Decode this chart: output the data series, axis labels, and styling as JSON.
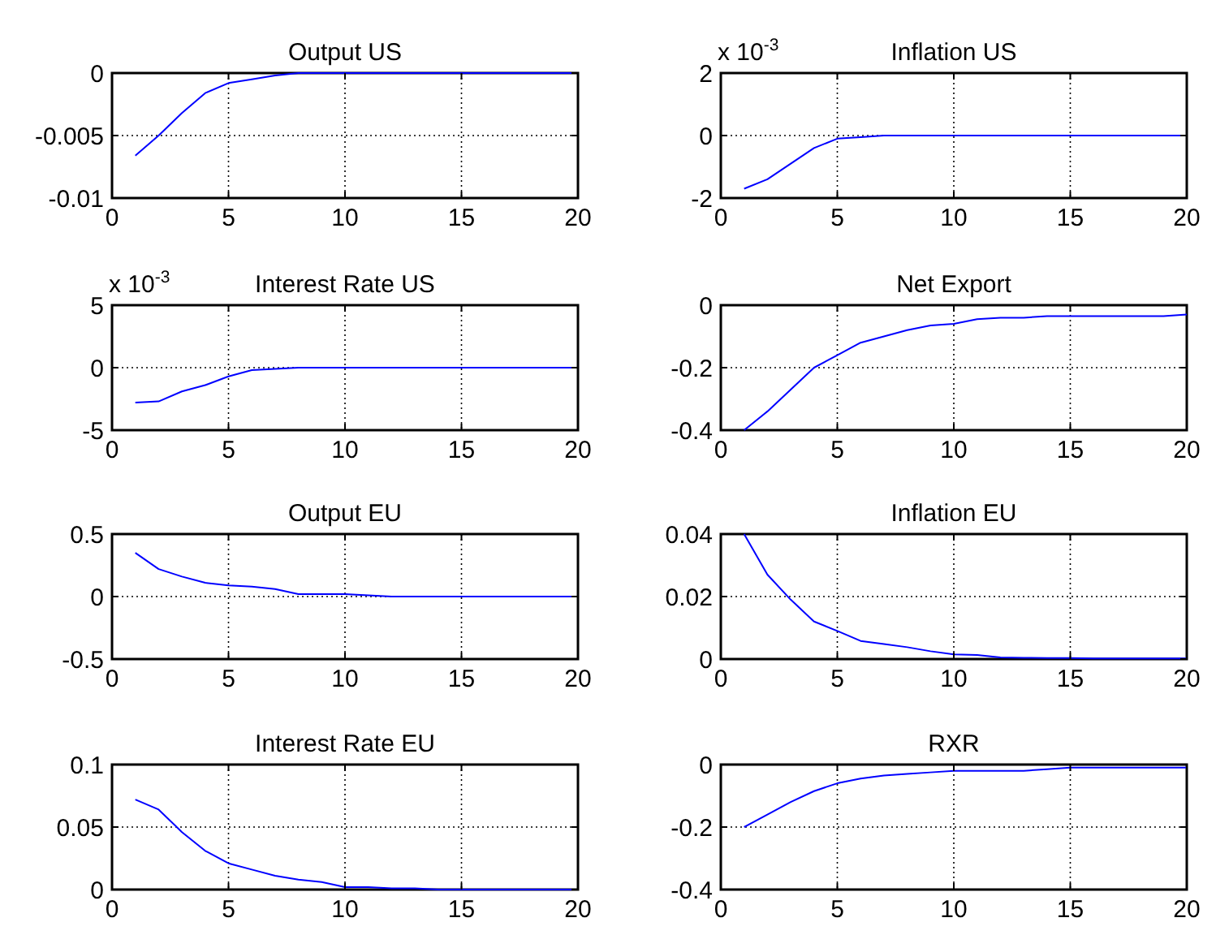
{
  "chart_data": [
    {
      "type": "line",
      "title": "Output US",
      "x": [
        1,
        2,
        3,
        4,
        5,
        6,
        7,
        8,
        9,
        10,
        11,
        12,
        13,
        14,
        15,
        16,
        17,
        18,
        19,
        20
      ],
      "series": [
        {
          "color": "#0000ff",
          "values": [
            -0.0066,
            -0.005,
            -0.0032,
            -0.0016,
            -0.0008,
            -0.0005,
            -0.0002,
            0,
            0,
            0,
            0,
            0,
            0,
            0,
            0,
            0,
            0,
            0,
            0,
            0
          ]
        }
      ],
      "xlim": [
        0,
        20
      ],
      "xticks": [
        0,
        5,
        10,
        15,
        20
      ],
      "ylim": [
        -0.01,
        0
      ],
      "yticks": [
        -0.01,
        -0.005,
        0
      ],
      "grid": true
    },
    {
      "type": "line",
      "title": "Inflation US",
      "annotations": [
        "x 10$^{-3}$"
      ],
      "x": [
        1,
        2,
        3,
        4,
        5,
        6,
        7,
        8,
        9,
        10,
        11,
        12,
        13,
        14,
        15,
        16,
        17,
        18,
        19,
        20
      ],
      "series": [
        {
          "color": "#0000ff",
          "values": [
            -1.7,
            -1.4,
            -0.9,
            -0.4,
            -0.1,
            -0.05,
            0,
            0,
            0,
            0,
            0,
            0,
            0,
            0,
            0,
            0,
            0,
            0,
            0,
            0
          ]
        }
      ],
      "xlim": [
        0,
        20
      ],
      "xticks": [
        0,
        5,
        10,
        15,
        20
      ],
      "ylim": [
        -2,
        2
      ],
      "yticks": [
        -2,
        0,
        2
      ],
      "grid": true
    },
    {
      "type": "line",
      "title": "Interest Rate US",
      "annotations": [
        "x 10$^{-3}$"
      ],
      "x": [
        1,
        2,
        3,
        4,
        5,
        6,
        7,
        8,
        9,
        10,
        11,
        12,
        13,
        14,
        15,
        16,
        17,
        18,
        19,
        20
      ],
      "series": [
        {
          "color": "#0000ff",
          "values": [
            -2.8,
            -2.7,
            -1.9,
            -1.4,
            -0.7,
            -0.2,
            -0.1,
            0,
            0,
            0,
            0,
            0,
            0,
            0,
            0,
            0,
            0,
            0,
            0,
            0
          ]
        }
      ],
      "xlim": [
        0,
        20
      ],
      "xticks": [
        0,
        5,
        10,
        15,
        20
      ],
      "ylim": [
        -5,
        5
      ],
      "yticks": [
        -5,
        0,
        5
      ],
      "grid": true
    },
    {
      "type": "line",
      "title": "Net Export",
      "x": [
        1,
        2,
        3,
        4,
        5,
        6,
        7,
        8,
        9,
        10,
        11,
        12,
        13,
        14,
        15,
        16,
        17,
        18,
        19,
        20
      ],
      "series": [
        {
          "color": "#0000ff",
          "values": [
            -0.4,
            -0.34,
            -0.27,
            -0.2,
            -0.16,
            -0.12,
            -0.1,
            -0.08,
            -0.065,
            -0.06,
            -0.045,
            -0.04,
            -0.04,
            -0.035,
            -0.035,
            -0.035,
            -0.035,
            -0.035,
            -0.035,
            -0.03
          ]
        }
      ],
      "xlim": [
        0,
        20
      ],
      "xticks": [
        0,
        5,
        10,
        15,
        20
      ],
      "ylim": [
        -0.4,
        0
      ],
      "yticks": [
        -0.4,
        -0.2,
        0
      ],
      "grid": true
    },
    {
      "type": "line",
      "title": "Output EU",
      "x": [
        1,
        2,
        3,
        4,
        5,
        6,
        7,
        8,
        9,
        10,
        11,
        12,
        13,
        14,
        15,
        16,
        17,
        18,
        19,
        20
      ],
      "series": [
        {
          "color": "#0000ff",
          "values": [
            0.35,
            0.22,
            0.16,
            0.11,
            0.09,
            0.08,
            0.06,
            0.02,
            0.02,
            0.02,
            0.01,
            0,
            0,
            0,
            0,
            0,
            0,
            0,
            0,
            0
          ]
        }
      ],
      "xlim": [
        0,
        20
      ],
      "xticks": [
        0,
        5,
        10,
        15,
        20
      ],
      "ylim": [
        -0.5,
        0.5
      ],
      "yticks": [
        -0.5,
        0,
        0.5
      ],
      "grid": true
    },
    {
      "type": "line",
      "title": "Inflation EU",
      "x": [
        1,
        2,
        3,
        4,
        5,
        6,
        7,
        8,
        9,
        10,
        11,
        12,
        13,
        14,
        15,
        16,
        17,
        18,
        19,
        20
      ],
      "series": [
        {
          "color": "#0000ff",
          "values": [
            0.04,
            0.027,
            0.019,
            0.012,
            0.009,
            0.0058,
            0.0048,
            0.0038,
            0.0025,
            0.0015,
            0.0013,
            0.0005,
            0.0004,
            0.0003,
            0.0003,
            0.0002,
            0.0002,
            0.0002,
            0.0002,
            0.0002
          ]
        }
      ],
      "xlim": [
        0,
        20
      ],
      "xticks": [
        0,
        5,
        10,
        15,
        20
      ],
      "ylim": [
        0,
        0.04
      ],
      "yticks": [
        0,
        0.02,
        0.04
      ],
      "grid": true
    },
    {
      "type": "line",
      "title": "Interest Rate EU",
      "x": [
        1,
        2,
        3,
        4,
        5,
        6,
        7,
        8,
        9,
        10,
        11,
        12,
        13,
        14,
        15,
        16,
        17,
        18,
        19,
        20
      ],
      "series": [
        {
          "color": "#0000ff",
          "values": [
            0.072,
            0.064,
            0.046,
            0.031,
            0.021,
            0.016,
            0.011,
            0.008,
            0.006,
            0.002,
            0.002,
            0.001,
            0.001,
            0,
            0,
            0,
            0,
            0,
            0,
            0
          ]
        }
      ],
      "xlim": [
        0,
        20
      ],
      "xticks": [
        0,
        5,
        10,
        15,
        20
      ],
      "ylim": [
        0,
        0.1
      ],
      "yticks": [
        0,
        0.05,
        0.1
      ],
      "grid": true
    },
    {
      "type": "line",
      "title": "RXR",
      "x": [
        1,
        2,
        3,
        4,
        5,
        6,
        7,
        8,
        9,
        10,
        11,
        12,
        13,
        14,
        15,
        16,
        17,
        18,
        19,
        20
      ],
      "series": [
        {
          "color": "#0000ff",
          "values": [
            -0.2,
            -0.16,
            -0.12,
            -0.085,
            -0.06,
            -0.045,
            -0.035,
            -0.03,
            -0.025,
            -0.02,
            -0.02,
            -0.02,
            -0.02,
            -0.015,
            -0.01,
            -0.01,
            -0.01,
            -0.01,
            -0.01,
            -0.01
          ]
        }
      ],
      "xlim": [
        0,
        20
      ],
      "xticks": [
        0,
        5,
        10,
        15,
        20
      ],
      "ylim": [
        -0.4,
        0
      ],
      "yticks": [
        -0.4,
        -0.2,
        0
      ],
      "grid": true
    }
  ]
}
